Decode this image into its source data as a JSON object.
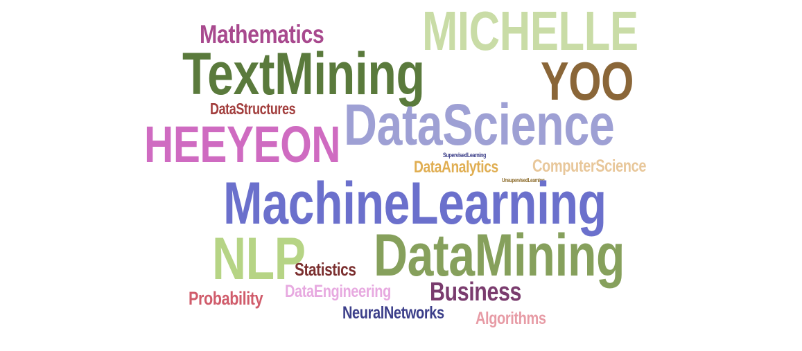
{
  "word_cloud": {
    "words": [
      {
        "text": "MICHELLE",
        "color": "#c9dca6"
      },
      {
        "text": "Mathematics",
        "color": "#a8498e"
      },
      {
        "text": "TextMining",
        "color": "#5a7a3c"
      },
      {
        "text": "YOO",
        "color": "#8a6638"
      },
      {
        "text": "DataStructures",
        "color": "#a23e3d"
      },
      {
        "text": "DataScience",
        "color": "#9ea0d4"
      },
      {
        "text": "HEEYEON",
        "color": "#cf6bc1"
      },
      {
        "text": "SupervisedLearning",
        "color": "#3b3e88"
      },
      {
        "text": "DataAnalytics",
        "color": "#e0ae52"
      },
      {
        "text": "ComputerScience",
        "color": "#e8c79a"
      },
      {
        "text": "UnsupervisedLearning",
        "color": "#8c6b2a"
      },
      {
        "text": "MachineLearning",
        "color": "#6b70cc"
      },
      {
        "text": "NLP",
        "color": "#b6d485"
      },
      {
        "text": "DataMining",
        "color": "#86a05c"
      },
      {
        "text": "Statistics",
        "color": "#7b2f2f"
      },
      {
        "text": "Business",
        "color": "#7a3c6e"
      },
      {
        "text": "DataEngineering",
        "color": "#e7a9e0"
      },
      {
        "text": "Probability",
        "color": "#d05c6b"
      },
      {
        "text": "NeuralNetworks",
        "color": "#3c3f8a"
      },
      {
        "text": "Algorithms",
        "color": "#e79ba5"
      }
    ]
  }
}
